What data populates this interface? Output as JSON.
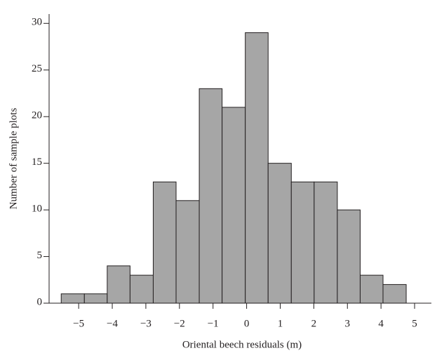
{
  "chart_data": {
    "type": "histogram",
    "x_label": "Oriental beech residuals (m)",
    "y_label": "Number of sample plots",
    "bins": [
      -5.52,
      -4.83,
      -4.15,
      -3.47,
      -2.78,
      -2.1,
      -1.41,
      -0.73,
      -0.04,
      0.64,
      1.33,
      2.01,
      2.7,
      3.38,
      4.06,
      4.75
    ],
    "values": [
      1,
      1,
      4,
      3,
      13,
      11,
      23,
      21,
      29,
      15,
      13,
      13,
      10,
      3,
      2
    ],
    "color": "#a6a6a6",
    "xlim": [
      -5.88,
      5.5
    ],
    "xticks": [
      {
        "value": -5,
        "label": "−5"
      },
      {
        "value": -4,
        "label": "−4"
      },
      {
        "value": -3,
        "label": "−3"
      },
      {
        "value": -2,
        "label": "−2"
      },
      {
        "value": -1,
        "label": "−1"
      },
      0,
      1,
      2,
      3,
      4,
      5
    ],
    "ylim": [
      0,
      31
    ],
    "yticks": [
      0,
      5,
      10,
      15,
      20,
      25,
      30
    ]
  }
}
